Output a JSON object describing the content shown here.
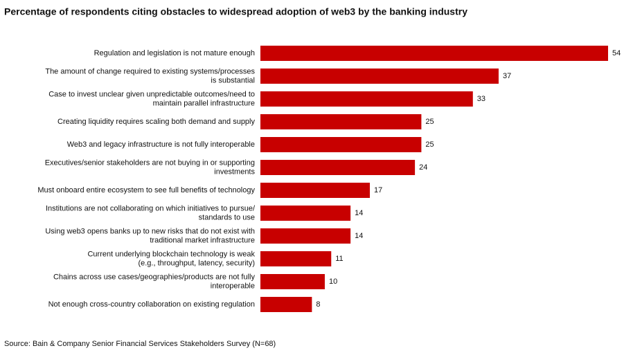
{
  "chart_data": {
    "type": "barh",
    "title": "Percentage of respondents citing obstacles to widespread adoption of web3 by the banking industry",
    "categories": [
      "Regulation and legislation is not mature enough",
      "The amount of change required to existing systems/processes\nis substantial",
      "Case to invest unclear given unpredictable outcomes/need to\nmaintain parallel infrastructure",
      "Creating liquidity requires scaling both demand and supply",
      "Web3 and legacy infrastructure is not fully interoperable",
      "Executives/senior stakeholders are not buying in or supporting\ninvestments",
      "Must onboard entire ecosystem to see full benefits of technology",
      "Institutions are not collaborating on which initiatives to pursue/\nstandards to use",
      "Using web3 opens banks up to new risks that do not exist with\ntraditional market infrastructure",
      "Current underlying blockchain technology is weak\n(e.g., throughput, latency, security)",
      "Chains across use cases/geographies/products are not fully\ninteroperable",
      "Not enough cross-country collaboration on existing regulation"
    ],
    "values": [
      54,
      37,
      33,
      25,
      25,
      24,
      17,
      14,
      14,
      11,
      10,
      8
    ],
    "color": "#c80000",
    "source": "Source: Bain & Company Senior Financial Services Stakeholders Survey (N=68)"
  }
}
